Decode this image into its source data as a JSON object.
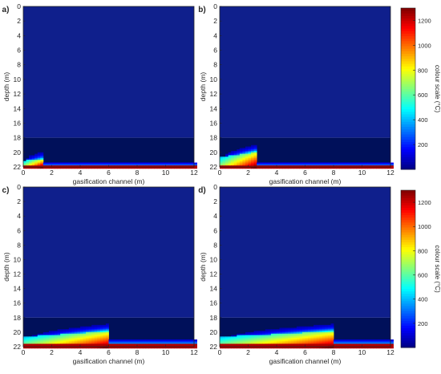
{
  "figure": {
    "axes_color": "#262626",
    "background": "#ffffff",
    "colormap": "jet",
    "panels": [
      {
        "label": "a)",
        "xlabel": "gasification channel (m)",
        "ylabel": "depth (m)",
        "colorbar": false
      },
      {
        "label": "b)",
        "xlabel": "gasification channel (m)",
        "ylabel": "depth (m)",
        "colorbar": true
      },
      {
        "label": "c)",
        "xlabel": "gasification channel (m)",
        "ylabel": "depth (m)",
        "colorbar": false
      },
      {
        "label": "d)",
        "xlabel": "gasification channel (m)",
        "ylabel": "depth (m)",
        "colorbar": true
      }
    ]
  },
  "chart_data": [
    {
      "type": "heatmap",
      "panel_label": "a)",
      "xlabel": "gasification channel (m)",
      "ylabel": "depth (m)",
      "xlim": [
        0,
        12
      ],
      "ylim": [
        22,
        0
      ],
      "x_ticks": [
        "0",
        "2",
        "4",
        "6",
        "8",
        "10",
        "12"
      ],
      "y_ticks": [
        "0",
        "2",
        "4",
        "6",
        "8",
        "10",
        "12",
        "14",
        "16",
        "18",
        "20",
        "22"
      ],
      "background_temperature": 20,
      "darker_band_depth": [
        18,
        22
      ],
      "channel_end_x": 1.3,
      "cavity_top_depth": 21.0,
      "floor_hot_depth": 21.8,
      "peak_temperature": 1300,
      "colorbar": null
    },
    {
      "type": "heatmap",
      "panel_label": "b)",
      "xlabel": "gasification channel (m)",
      "ylabel": "depth (m)",
      "xlim": [
        0,
        12
      ],
      "ylim": [
        22,
        0
      ],
      "x_ticks": [
        "0",
        "2",
        "4",
        "6",
        "8",
        "10",
        "12"
      ],
      "y_ticks": [
        "0",
        "2",
        "4",
        "6",
        "8",
        "10",
        "12",
        "14",
        "16",
        "18",
        "20",
        "22"
      ],
      "background_temperature": 20,
      "darker_band_depth": [
        18,
        22
      ],
      "channel_end_x": 2.5,
      "cavity_top_depth": 20.0,
      "floor_hot_depth": 21.8,
      "peak_temperature": 1300,
      "colorbar": {
        "label": "colour scale (°C)",
        "range": [
          0,
          1300
        ],
        "ticks": [
          "200",
          "400",
          "600",
          "800",
          "1000",
          "1200"
        ]
      }
    },
    {
      "type": "heatmap",
      "panel_label": "c)",
      "xlabel": "gasification channel (m)",
      "ylabel": "depth (m)",
      "xlim": [
        0,
        12
      ],
      "ylim": [
        22,
        0
      ],
      "x_ticks": [
        "0",
        "2",
        "4",
        "6",
        "8",
        "10",
        "12"
      ],
      "y_ticks": [
        "0",
        "2",
        "4",
        "6",
        "8",
        "10",
        "12",
        "14",
        "16",
        "18",
        "20",
        "22"
      ],
      "background_temperature": 20,
      "darker_band_depth": [
        18,
        22
      ],
      "channel_end_x": 6.0,
      "cavity_top_depth": 19.9,
      "floor_hot_depth": 21.5,
      "peak_temperature": 1300,
      "colorbar": null
    },
    {
      "type": "heatmap",
      "panel_label": "d)",
      "xlabel": "gasification channel (m)",
      "ylabel": "depth (m)",
      "xlim": [
        0,
        12
      ],
      "ylim": [
        22,
        0
      ],
      "x_ticks": [
        "0",
        "2",
        "4",
        "6",
        "8",
        "10",
        "12"
      ],
      "y_ticks": [
        "0",
        "2",
        "4",
        "6",
        "8",
        "10",
        "12",
        "14",
        "16",
        "18",
        "20",
        "22"
      ],
      "background_temperature": 20,
      "darker_band_depth": [
        18,
        22
      ],
      "channel_end_x": 8.0,
      "cavity_top_depth": 19.9,
      "floor_hot_depth": 21.5,
      "peak_temperature": 1300,
      "colorbar": {
        "label": "colour scale (°C)",
        "range": [
          0,
          1300
        ],
        "ticks": [
          "200",
          "400",
          "600",
          "800",
          "1000",
          "1200"
        ]
      }
    }
  ]
}
